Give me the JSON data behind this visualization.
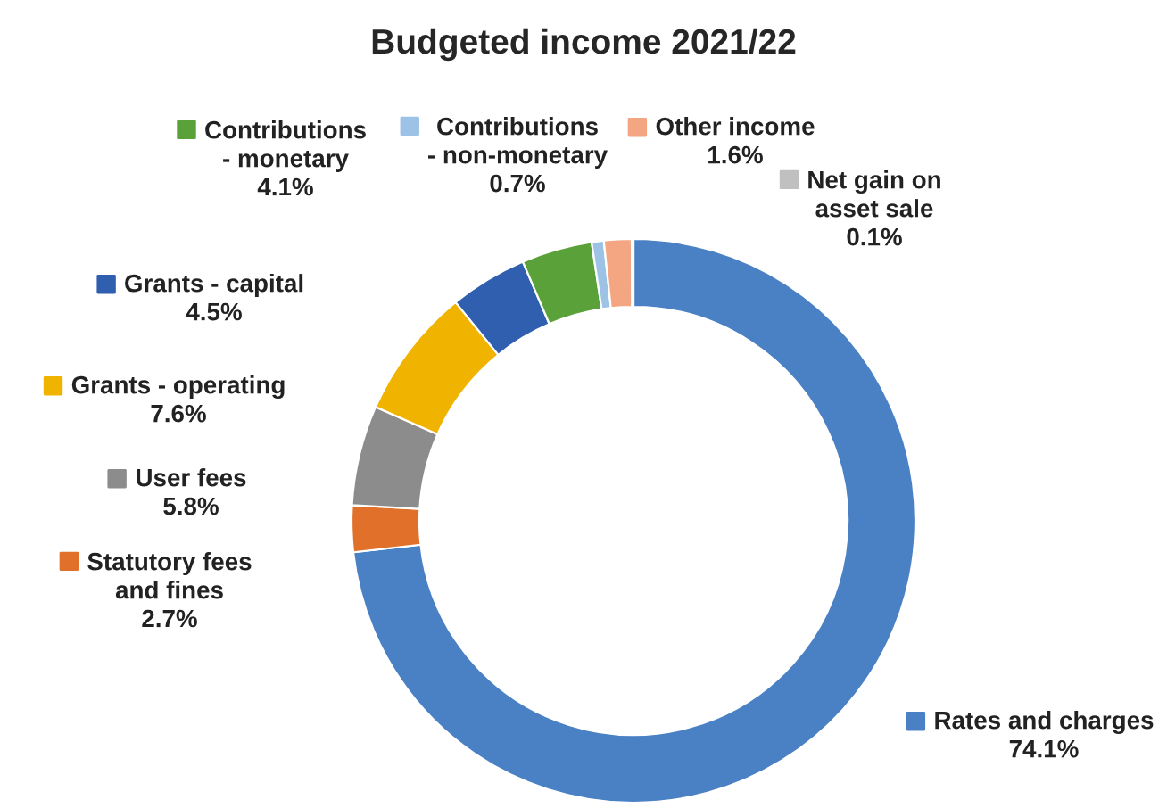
{
  "chart_data": {
    "type": "donut",
    "title": "Budgeted income 2021/22",
    "categories": [
      "Rates and charges",
      "Statutory fees and fines",
      "User fees",
      "Grants - operating",
      "Grants - capital",
      "Contributions - monetary",
      "Contributions - non-monetary",
      "Other income",
      "Net gain on asset sale"
    ],
    "values": [
      74.1,
      2.7,
      5.8,
      7.6,
      4.5,
      4.1,
      0.7,
      1.6,
      0.1
    ],
    "value_labels": [
      "74.1%",
      "2.7%",
      "5.8%",
      "7.6%",
      "4.5%",
      "4.1%",
      "0.7%",
      "1.6%",
      "0.1%"
    ],
    "colors": [
      "#4a80c4",
      "#e0702a",
      "#8c8c8c",
      "#f0b400",
      "#2f5fae",
      "#5aa13a",
      "#9cc3e6",
      "#f4a582",
      "#c0c0c0"
    ],
    "legend": "left"
  }
}
